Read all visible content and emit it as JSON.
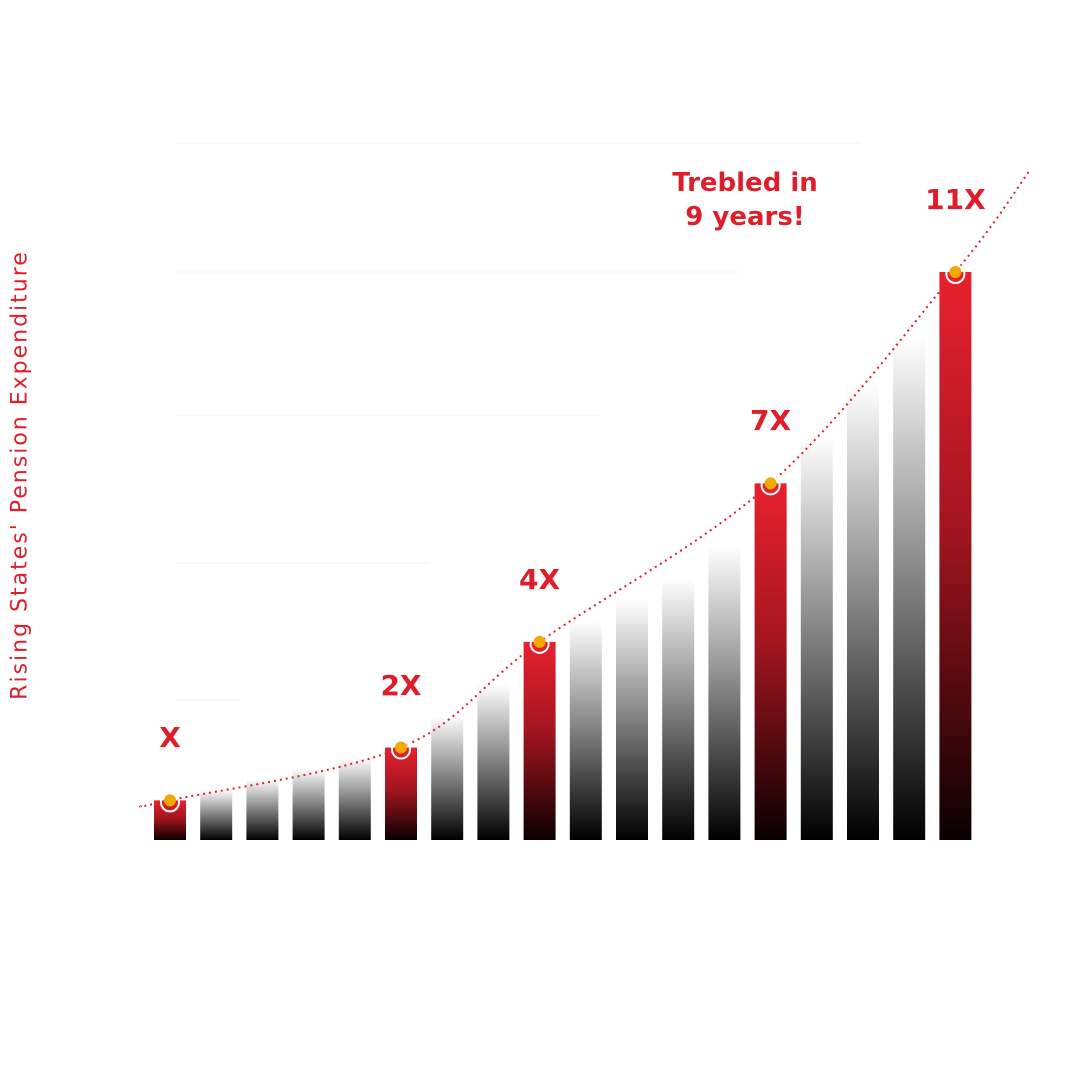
{
  "chart_data": {
    "type": "bar",
    "ylabel": "Rising States' Pension Expenditure",
    "values": [
      1,
      1.2,
      1.4,
      1.6,
      1.8,
      2,
      2.6,
      3.2,
      4,
      4.4,
      4.8,
      5.2,
      5.8,
      7,
      7.9,
      8.9,
      9.8,
      11
    ],
    "highlighted": [
      {
        "index": 0,
        "label": "X"
      },
      {
        "index": 5,
        "label": "2X"
      },
      {
        "index": 8,
        "label": "4X"
      },
      {
        "index": 13,
        "label": "7X"
      },
      {
        "index": 17,
        "label": "11X"
      }
    ],
    "annotation": [
      "Trebled in",
      "9 years!"
    ],
    "trendline": "dotted",
    "colors": {
      "accent": "#e01e2b",
      "marker": "#f5a800",
      "dark": "#000000"
    }
  }
}
